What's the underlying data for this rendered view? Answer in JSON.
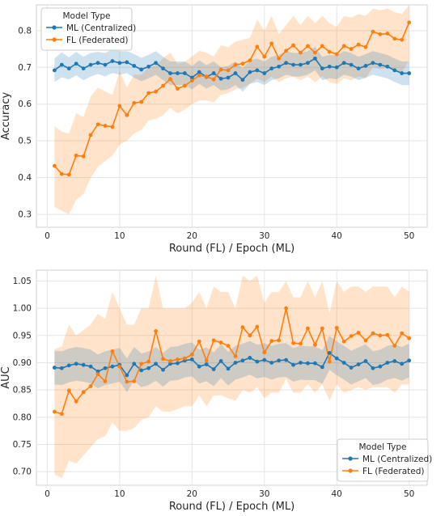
{
  "colors": {
    "ml": "#1f77b4",
    "fl": "#ff7f0e",
    "panel": "#ffffff",
    "grid": "#e5e5e5",
    "spine": "#d0d0d0"
  },
  "chart_data": [
    {
      "type": "line",
      "xlabel": "Round (FL) / Epoch (ML)",
      "ylabel": "Accuracy",
      "xlim": [
        -1.5,
        52.5
      ],
      "ylim": [
        0.265,
        0.87
      ],
      "xticks": [
        0,
        10,
        20,
        30,
        40,
        50
      ],
      "yticks": [
        0.3,
        0.4,
        0.5,
        0.6,
        0.7,
        0.8
      ],
      "grid": true,
      "legend": {
        "title": "Model Type",
        "position": "top-left",
        "entries": [
          "ML (Centralized)",
          "FL (Federated)"
        ]
      },
      "x": [
        1,
        2,
        3,
        4,
        5,
        6,
        7,
        8,
        9,
        10,
        11,
        12,
        13,
        14,
        15,
        16,
        17,
        18,
        19,
        20,
        21,
        22,
        23,
        24,
        25,
        26,
        27,
        28,
        29,
        30,
        31,
        32,
        33,
        34,
        35,
        36,
        37,
        38,
        39,
        40,
        41,
        42,
        43,
        44,
        45,
        46,
        47,
        48,
        49,
        50
      ],
      "series": [
        {
          "name": "ML (Centralized)",
          "values": [
            0.692,
            0.707,
            0.697,
            0.71,
            0.697,
            0.707,
            0.712,
            0.707,
            0.717,
            0.712,
            0.714,
            0.704,
            0.694,
            0.702,
            0.712,
            0.697,
            0.684,
            0.684,
            0.684,
            0.672,
            0.687,
            0.674,
            0.684,
            0.669,
            0.672,
            0.684,
            0.666,
            0.687,
            0.692,
            0.684,
            0.697,
            0.702,
            0.712,
            0.707,
            0.707,
            0.712,
            0.724,
            0.697,
            0.702,
            0.7,
            0.712,
            0.707,
            0.697,
            0.704,
            0.712,
            0.707,
            0.702,
            0.692,
            0.684,
            0.684
          ],
          "lower": [
            0.66,
            0.673,
            0.667,
            0.678,
            0.665,
            0.675,
            0.682,
            0.675,
            0.685,
            0.68,
            0.684,
            0.672,
            0.662,
            0.67,
            0.68,
            0.665,
            0.652,
            0.652,
            0.652,
            0.64,
            0.655,
            0.642,
            0.652,
            0.637,
            0.64,
            0.652,
            0.634,
            0.655,
            0.66,
            0.652,
            0.665,
            0.67,
            0.68,
            0.675,
            0.675,
            0.68,
            0.692,
            0.665,
            0.67,
            0.668,
            0.68,
            0.675,
            0.665,
            0.672,
            0.68,
            0.675,
            0.67,
            0.66,
            0.652,
            0.652
          ],
          "upper": [
            0.724,
            0.741,
            0.727,
            0.742,
            0.729,
            0.739,
            0.742,
            0.739,
            0.749,
            0.744,
            0.744,
            0.736,
            0.726,
            0.734,
            0.744,
            0.729,
            0.716,
            0.716,
            0.716,
            0.704,
            0.719,
            0.706,
            0.716,
            0.701,
            0.704,
            0.716,
            0.698,
            0.719,
            0.724,
            0.716,
            0.729,
            0.734,
            0.744,
            0.739,
            0.739,
            0.744,
            0.756,
            0.729,
            0.734,
            0.732,
            0.744,
            0.739,
            0.729,
            0.736,
            0.744,
            0.739,
            0.734,
            0.724,
            0.716,
            0.716
          ]
        },
        {
          "name": "FL (Federated)",
          "values": [
            0.432,
            0.41,
            0.408,
            0.46,
            0.458,
            0.516,
            0.545,
            0.541,
            0.538,
            0.595,
            0.57,
            0.603,
            0.606,
            0.63,
            0.634,
            0.65,
            0.668,
            0.642,
            0.65,
            0.664,
            0.678,
            0.675,
            0.667,
            0.694,
            0.692,
            0.707,
            0.71,
            0.719,
            0.756,
            0.729,
            0.765,
            0.724,
            0.745,
            0.76,
            0.74,
            0.758,
            0.74,
            0.758,
            0.742,
            0.736,
            0.758,
            0.75,
            0.762,
            0.755,
            0.797,
            0.79,
            0.792,
            0.778,
            0.775,
            0.822
          ],
          "lower": [
            0.32,
            0.31,
            0.3,
            0.34,
            0.355,
            0.4,
            0.43,
            0.445,
            0.46,
            0.49,
            0.5,
            0.52,
            0.53,
            0.555,
            0.56,
            0.57,
            0.59,
            0.575,
            0.585,
            0.6,
            0.61,
            0.61,
            0.605,
            0.625,
            0.63,
            0.64,
            0.645,
            0.655,
            0.67,
            0.66,
            0.675,
            0.66,
            0.67,
            0.675,
            0.665,
            0.675,
            0.66,
            0.675,
            0.66,
            0.655,
            0.67,
            0.665,
            0.675,
            0.67,
            0.7,
            0.695,
            0.7,
            0.69,
            0.685,
            0.72
          ],
          "upper": [
            0.54,
            0.525,
            0.52,
            0.575,
            0.565,
            0.62,
            0.645,
            0.635,
            0.625,
            0.69,
            0.645,
            0.68,
            0.68,
            0.7,
            0.705,
            0.725,
            0.74,
            0.71,
            0.715,
            0.73,
            0.745,
            0.74,
            0.73,
            0.76,
            0.755,
            0.77,
            0.775,
            0.78,
            0.83,
            0.8,
            0.84,
            0.79,
            0.815,
            0.84,
            0.815,
            0.84,
            0.82,
            0.84,
            0.82,
            0.81,
            0.84,
            0.835,
            0.845,
            0.84,
            0.86,
            0.855,
            0.86,
            0.85,
            0.845,
            0.87
          ]
        }
      ]
    },
    {
      "type": "line",
      "xlabel": "Round (FL) / Epoch (ML)",
      "ylabel": "AUC",
      "xlim": [
        -1.5,
        52.5
      ],
      "ylim": [
        0.675,
        1.07
      ],
      "xticks": [
        0,
        10,
        20,
        30,
        40,
        50
      ],
      "yticks": [
        0.7,
        0.75,
        0.8,
        0.85,
        0.9,
        0.95,
        1.0,
        1.05
      ],
      "ytick_labels": [
        "0.70",
        "0.75",
        "0.80",
        "0.85",
        "0.90",
        "0.95",
        "1.00",
        "1.05"
      ],
      "grid": true,
      "legend": {
        "title": "Model Type",
        "position": "bottom-right",
        "entries": [
          "ML (Centralized)",
          "FL (Federated)"
        ]
      },
      "x": [
        1,
        2,
        3,
        4,
        5,
        6,
        7,
        8,
        9,
        10,
        11,
        12,
        13,
        14,
        15,
        16,
        17,
        18,
        19,
        20,
        21,
        22,
        23,
        24,
        25,
        26,
        27,
        28,
        29,
        30,
        31,
        32,
        33,
        34,
        35,
        36,
        37,
        38,
        39,
        40,
        41,
        42,
        43,
        44,
        45,
        46,
        47,
        48,
        49,
        50
      ],
      "series": [
        {
          "name": "ML (Centralized)",
          "values": [
            0.891,
            0.89,
            0.895,
            0.898,
            0.896,
            0.893,
            0.884,
            0.89,
            0.893,
            0.896,
            0.877,
            0.898,
            0.886,
            0.89,
            0.898,
            0.887,
            0.898,
            0.899,
            0.904,
            0.906,
            0.893,
            0.897,
            0.888,
            0.903,
            0.889,
            0.9,
            0.904,
            0.909,
            0.902,
            0.905,
            0.9,
            0.904,
            0.905,
            0.896,
            0.9,
            0.899,
            0.899,
            0.892,
            0.918,
            0.908,
            0.9,
            0.891,
            0.897,
            0.903,
            0.89,
            0.893,
            0.9,
            0.903,
            0.898,
            0.904
          ],
          "lower": [
            0.86,
            0.859,
            0.864,
            0.867,
            0.865,
            0.862,
            0.853,
            0.859,
            0.862,
            0.865,
            0.846,
            0.867,
            0.855,
            0.859,
            0.867,
            0.856,
            0.867,
            0.868,
            0.873,
            0.875,
            0.862,
            0.866,
            0.857,
            0.872,
            0.858,
            0.869,
            0.873,
            0.878,
            0.871,
            0.874,
            0.869,
            0.873,
            0.874,
            0.865,
            0.869,
            0.868,
            0.868,
            0.861,
            0.887,
            0.877,
            0.869,
            0.86,
            0.866,
            0.872,
            0.859,
            0.862,
            0.869,
            0.872,
            0.867,
            0.873
          ],
          "upper": [
            0.922,
            0.921,
            0.926,
            0.929,
            0.927,
            0.924,
            0.915,
            0.921,
            0.924,
            0.927,
            0.908,
            0.929,
            0.917,
            0.921,
            0.929,
            0.918,
            0.929,
            0.93,
            0.935,
            0.937,
            0.924,
            0.928,
            0.919,
            0.934,
            0.92,
            0.931,
            0.935,
            0.94,
            0.933,
            0.936,
            0.931,
            0.935,
            0.936,
            0.927,
            0.931,
            0.93,
            0.93,
            0.923,
            0.949,
            0.939,
            0.931,
            0.922,
            0.928,
            0.934,
            0.921,
            0.924,
            0.931,
            0.934,
            0.929,
            0.935
          ]
        },
        {
          "name": "FL (Federated)",
          "values": [
            0.81,
            0.806,
            0.849,
            0.829,
            0.846,
            0.857,
            0.879,
            0.866,
            0.921,
            0.893,
            0.865,
            0.866,
            0.898,
            0.902,
            0.958,
            0.907,
            0.903,
            0.906,
            0.908,
            0.915,
            0.939,
            0.904,
            0.941,
            0.937,
            0.931,
            0.912,
            0.965,
            0.95,
            0.966,
            0.919,
            0.94,
            0.941,
            1.0,
            0.936,
            0.935,
            0.963,
            0.933,
            0.963,
            0.902,
            0.964,
            0.939,
            0.949,
            0.955,
            0.941,
            0.954,
            0.95,
            0.951,
            0.931,
            0.954,
            0.945
          ],
          "lower": [
            0.695,
            0.688,
            0.72,
            0.715,
            0.73,
            0.745,
            0.76,
            0.765,
            0.79,
            0.775,
            0.775,
            0.78,
            0.795,
            0.8,
            0.82,
            0.81,
            0.81,
            0.815,
            0.82,
            0.82,
            0.84,
            0.82,
            0.84,
            0.84,
            0.835,
            0.83,
            0.85,
            0.845,
            0.855,
            0.835,
            0.845,
            0.845,
            0.87,
            0.845,
            0.845,
            0.86,
            0.845,
            0.86,
            0.83,
            0.86,
            0.845,
            0.85,
            0.855,
            0.85,
            0.855,
            0.855,
            0.855,
            0.845,
            0.86,
            0.86
          ],
          "upper": [
            0.925,
            0.93,
            0.97,
            0.95,
            0.96,
            0.97,
            0.99,
            0.98,
            1.03,
            1.0,
            0.97,
            0.97,
            1.0,
            1.0,
            1.06,
            1.0,
            1.0,
            1.0,
            1.0,
            1.01,
            1.03,
            1.0,
            1.04,
            1.03,
            1.03,
            1.0,
            1.06,
            1.05,
            1.06,
            1.01,
            1.03,
            1.03,
            1.05,
            1.02,
            1.02,
            1.05,
            1.02,
            1.05,
            0.99,
            1.05,
            1.03,
            1.04,
            1.04,
            1.03,
            1.04,
            1.04,
            1.04,
            1.02,
            1.04,
            1.03
          ]
        }
      ]
    }
  ]
}
